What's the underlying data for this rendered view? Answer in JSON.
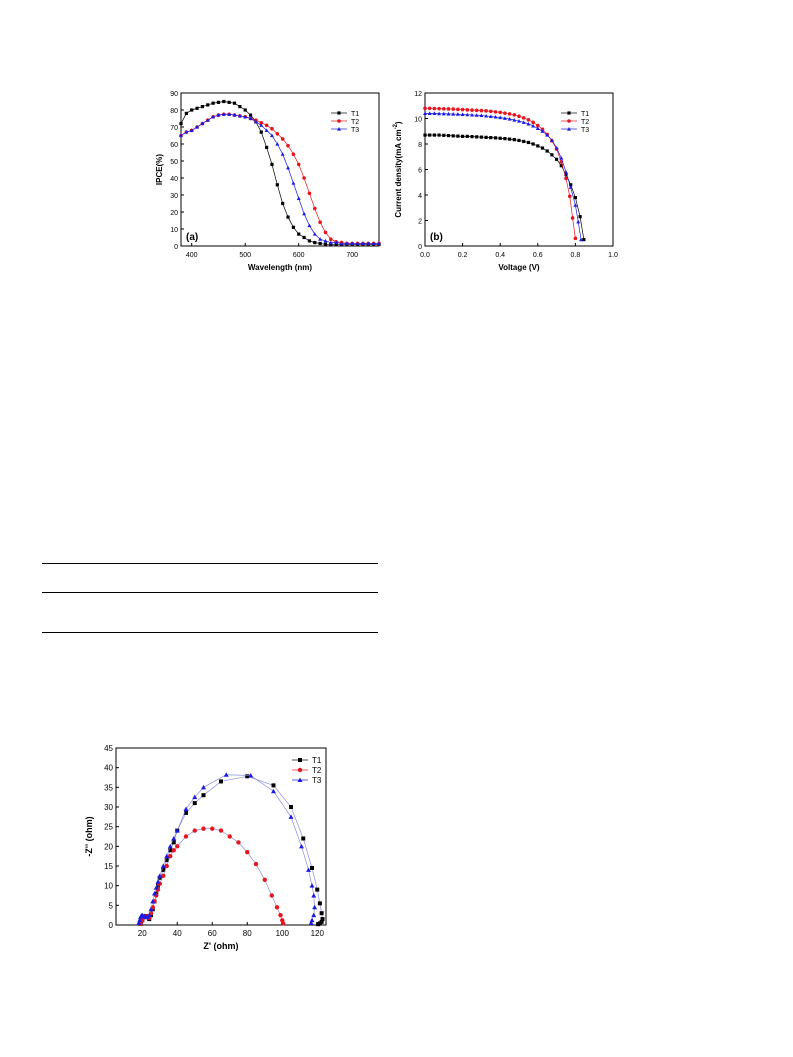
{
  "chart_data": [
    {
      "type": "line",
      "panel_label": "(a)",
      "xlabel": "Wavelength (nm)",
      "ylabel": "IPCE(%)",
      "xlim": [
        380,
        750
      ],
      "ylim": [
        0,
        90
      ],
      "xticks": [
        400,
        500,
        600,
        700
      ],
      "yticks": [
        0,
        10,
        20,
        30,
        40,
        50,
        60,
        70,
        80,
        90
      ],
      "legend_position": "top-right",
      "series": [
        {
          "name": "T1",
          "color": "#000000",
          "marker": "square",
          "x": [
            380,
            390,
            400,
            410,
            420,
            430,
            440,
            450,
            460,
            470,
            480,
            490,
            500,
            510,
            520,
            530,
            540,
            550,
            560,
            570,
            580,
            590,
            600,
            610,
            620,
            630,
            640,
            650,
            660,
            670,
            680,
            690,
            700,
            710,
            720,
            730,
            740,
            750
          ],
          "y": [
            72,
            78,
            80,
            81,
            82,
            83,
            84,
            84.5,
            85,
            84.5,
            84,
            82,
            80,
            77,
            73,
            67,
            58,
            48,
            36,
            25,
            17,
            11,
            7,
            5,
            3,
            2,
            1.5,
            1,
            1,
            1,
            1,
            1,
            1,
            1,
            1,
            1,
            1,
            1
          ]
        },
        {
          "name": "T2",
          "color": "#e8141e",
          "marker": "circle",
          "x": [
            380,
            390,
            400,
            410,
            420,
            430,
            440,
            450,
            460,
            470,
            480,
            490,
            500,
            510,
            520,
            530,
            540,
            550,
            560,
            570,
            580,
            590,
            600,
            610,
            620,
            630,
            640,
            650,
            660,
            670,
            680,
            690,
            700,
            710,
            720,
            730,
            740,
            750
          ],
          "y": [
            65,
            67,
            68,
            70,
            72,
            74,
            76,
            77,
            77.5,
            77.5,
            77,
            76.5,
            76,
            75,
            74,
            72.5,
            71,
            69,
            66,
            63,
            59,
            54,
            48,
            40,
            31,
            22,
            14,
            8,
            4,
            2.5,
            2,
            1.5,
            1.5,
            1.5,
            1.5,
            1.5,
            1.5,
            1.5
          ]
        },
        {
          "name": "T3",
          "color": "#1a1ae6",
          "marker": "triangle",
          "x": [
            380,
            390,
            400,
            410,
            420,
            430,
            440,
            450,
            460,
            470,
            480,
            490,
            500,
            510,
            520,
            530,
            540,
            550,
            560,
            570,
            580,
            590,
            600,
            610,
            620,
            630,
            640,
            650,
            660,
            670,
            680,
            690,
            700,
            710,
            720,
            730,
            740,
            750
          ],
          "y": [
            65,
            67,
            68,
            70,
            72,
            74,
            76,
            77,
            77.5,
            77.5,
            77,
            76.5,
            76,
            75,
            73,
            71,
            68,
            65,
            60,
            54,
            46,
            37,
            28,
            19,
            12,
            7,
            4,
            3,
            2,
            2,
            1.5,
            1.5,
            1.5,
            1.5,
            1.5,
            1.5,
            1.5,
            1.5
          ]
        }
      ]
    },
    {
      "type": "line",
      "panel_label": "(b)",
      "xlabel": "Voltage (V)",
      "ylabel": "Current density(mA cm",
      "ylabel_sup": "-2",
      "ylabel_end": ")",
      "xlim": [
        0,
        1.0
      ],
      "ylim": [
        0,
        12
      ],
      "xticks": [
        "0.0",
        "0.2",
        "0.4",
        "0.6",
        "0.8",
        "1.0"
      ],
      "yticks": [
        0,
        2,
        4,
        6,
        8,
        10,
        12
      ],
      "legend_position": "top-right",
      "series": [
        {
          "name": "T1",
          "color": "#000000",
          "marker": "square",
          "x": [
            0,
            0.025,
            0.05,
            0.075,
            0.1,
            0.125,
            0.15,
            0.175,
            0.2,
            0.225,
            0.25,
            0.275,
            0.3,
            0.325,
            0.35,
            0.375,
            0.4,
            0.425,
            0.45,
            0.475,
            0.5,
            0.525,
            0.55,
            0.575,
            0.6,
            0.625,
            0.65,
            0.675,
            0.7,
            0.725,
            0.75,
            0.775,
            0.8,
            0.825,
            0.845
          ],
          "y": [
            8.7,
            8.7,
            8.7,
            8.7,
            8.68,
            8.66,
            8.64,
            8.62,
            8.6,
            8.6,
            8.58,
            8.56,
            8.54,
            8.52,
            8.5,
            8.48,
            8.45,
            8.42,
            8.38,
            8.34,
            8.28,
            8.2,
            8.12,
            8.0,
            7.85,
            7.68,
            7.45,
            7.15,
            6.8,
            6.3,
            5.6,
            4.8,
            3.8,
            2.3,
            0.5
          ]
        },
        {
          "name": "T2",
          "color": "#e8141e",
          "marker": "circle",
          "x": [
            0,
            0.025,
            0.05,
            0.075,
            0.1,
            0.125,
            0.15,
            0.175,
            0.2,
            0.225,
            0.25,
            0.275,
            0.3,
            0.325,
            0.35,
            0.375,
            0.4,
            0.425,
            0.45,
            0.475,
            0.5,
            0.525,
            0.55,
            0.575,
            0.6,
            0.625,
            0.65,
            0.675,
            0.7,
            0.725,
            0.75,
            0.77,
            0.785,
            0.8
          ],
          "y": [
            10.8,
            10.8,
            10.78,
            10.77,
            10.76,
            10.75,
            10.74,
            10.72,
            10.7,
            10.68,
            10.66,
            10.64,
            10.62,
            10.6,
            10.56,
            10.52,
            10.48,
            10.42,
            10.36,
            10.28,
            10.18,
            10.05,
            9.9,
            9.7,
            9.45,
            9.15,
            8.75,
            8.25,
            7.6,
            6.6,
            5.3,
            3.9,
            2.2,
            0.6
          ]
        },
        {
          "name": "T3",
          "color": "#1a1ae6",
          "marker": "triangle",
          "x": [
            0,
            0.025,
            0.05,
            0.075,
            0.1,
            0.125,
            0.15,
            0.175,
            0.2,
            0.225,
            0.25,
            0.275,
            0.3,
            0.325,
            0.35,
            0.375,
            0.4,
            0.425,
            0.45,
            0.475,
            0.5,
            0.525,
            0.55,
            0.575,
            0.6,
            0.625,
            0.65,
            0.675,
            0.7,
            0.725,
            0.75,
            0.775,
            0.8,
            0.815,
            0.83
          ],
          "y": [
            10.4,
            10.4,
            10.4,
            10.38,
            10.37,
            10.36,
            10.35,
            10.34,
            10.32,
            10.3,
            10.28,
            10.26,
            10.24,
            10.2,
            10.16,
            10.12,
            10.08,
            10.02,
            9.96,
            9.88,
            9.8,
            9.7,
            9.58,
            9.42,
            9.22,
            9.0,
            8.7,
            8.3,
            7.7,
            6.9,
            5.8,
            4.6,
            3.2,
            1.9,
            0.5
          ]
        }
      ]
    },
    {
      "type": "scatter",
      "xlabel": "Z' (ohm)",
      "ylabel": "-Z'' (ohm)",
      "xlim": [
        5,
        125
      ],
      "ylim": [
        0,
        45
      ],
      "xticks": [
        20,
        40,
        60,
        80,
        100,
        120
      ],
      "yticks": [
        0,
        5,
        10,
        15,
        20,
        25,
        30,
        35,
        40,
        45
      ],
      "legend_position": "top-right",
      "series": [
        {
          "name": "T1",
          "color": "#000000",
          "marker": "square",
          "x": [
            19,
            20,
            21,
            22,
            23,
            24,
            25,
            26,
            27,
            28,
            29,
            30,
            32,
            34,
            36,
            38,
            40,
            45,
            50,
            55,
            65,
            80,
            95,
            105,
            112,
            117,
            120,
            121.5,
            122.5,
            123,
            122.5,
            121.5,
            120.5
          ],
          "y": [
            0.3,
            1.2,
            2.0,
            2.3,
            2.0,
            1.5,
            2.5,
            4,
            6,
            8,
            10,
            12,
            14,
            16.5,
            19,
            21,
            24,
            28.5,
            31,
            33,
            36.5,
            37.8,
            35.5,
            30,
            22,
            14.5,
            9,
            5.5,
            3,
            1.5,
            0.8,
            0.4,
            0.2
          ]
        },
        {
          "name": "T2",
          "color": "#e8141e",
          "marker": "circle",
          "x": [
            19,
            20,
            21,
            22,
            23,
            24,
            25,
            26,
            27,
            28,
            29,
            30,
            32,
            34,
            36,
            38,
            40,
            45,
            50,
            55,
            60,
            65,
            70,
            75,
            80,
            85,
            90,
            94,
            97,
            99,
            100,
            100.5
          ],
          "y": [
            0.3,
            1.2,
            2.0,
            2.2,
            2.0,
            1.8,
            3,
            4.5,
            6,
            7.5,
            9,
            10.5,
            12.5,
            15,
            17.5,
            19,
            20,
            22.5,
            24,
            24.5,
            24.5,
            24,
            22.5,
            21,
            18.5,
            15.5,
            11.5,
            7.5,
            4.5,
            2.5,
            1.2,
            0.4
          ]
        },
        {
          "name": "T3",
          "color": "#1a1ae6",
          "marker": "triangle",
          "x": [
            18,
            18.5,
            19,
            19.5,
            20,
            21,
            22,
            23,
            24,
            25,
            26,
            27,
            28,
            29,
            30,
            32,
            34,
            36,
            38,
            40,
            45,
            50,
            55,
            68,
            82,
            95,
            105,
            111,
            115,
            117,
            118,
            118.5,
            118,
            117,
            116.5
          ],
          "y": [
            0.5,
            1.2,
            2.0,
            2.4,
            2.5,
            2.3,
            2.0,
            2.0,
            2.5,
            4,
            6,
            8,
            9.5,
            11,
            12.5,
            15,
            17.5,
            20,
            22,
            24,
            29.5,
            32.5,
            35,
            38.2,
            38,
            34,
            27.5,
            20,
            14,
            10,
            7.5,
            4.5,
            2.5,
            1.2,
            0.5
          ]
        }
      ]
    }
  ]
}
